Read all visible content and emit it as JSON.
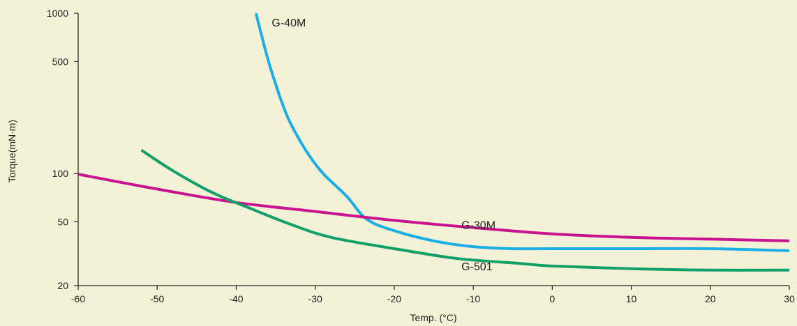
{
  "chart_data": {
    "type": "line",
    "title": "",
    "xlabel": "Temp. (°C)",
    "ylabel": "Torque(mN·m)",
    "xlim": [
      -60,
      30
    ],
    "ylim": [
      20,
      1000
    ],
    "yscale": "log",
    "grid": false,
    "legend": "none",
    "background": "#f3f1d6",
    "x_ticks": [
      -60,
      -50,
      -40,
      -30,
      -20,
      -10,
      0,
      10,
      20,
      30
    ],
    "x_tick_labels": [
      "-60",
      "-50",
      "-40",
      "-30",
      "-20",
      "-10",
      "0",
      "10",
      "20",
      "30"
    ],
    "y_ticks": [
      20,
      50,
      100,
      500,
      1000
    ],
    "y_tick_labels": [
      "20",
      "50",
      "100",
      "500",
      "1000"
    ],
    "series": [
      {
        "name": "G-40M",
        "color": "#1aaee5",
        "points": [
          [
            -37.5,
            1000
          ],
          [
            -37,
            800
          ],
          [
            -36,
            520
          ],
          [
            -35,
            360
          ],
          [
            -34,
            260
          ],
          [
            -33,
            200
          ],
          [
            -31,
            135
          ],
          [
            -29,
            100
          ],
          [
            -26,
            72
          ],
          [
            -23.5,
            52
          ],
          [
            -20,
            44
          ],
          [
            -15,
            38
          ],
          [
            -10,
            35
          ],
          [
            -5,
            34
          ],
          [
            0,
            34
          ],
          [
            10,
            34
          ],
          [
            20,
            34
          ],
          [
            30,
            33
          ]
        ]
      },
      {
        "name": "G-30M",
        "color": "#c8158f",
        "points": [
          [
            -60,
            99
          ],
          [
            -50,
            80
          ],
          [
            -40,
            66
          ],
          [
            -30,
            58
          ],
          [
            -20,
            51
          ],
          [
            -10,
            46
          ],
          [
            0,
            42
          ],
          [
            10,
            40
          ],
          [
            20,
            39
          ],
          [
            30,
            38
          ]
        ]
      },
      {
        "name": "G-501",
        "color": "#12a06a",
        "points": [
          [
            -52,
            140
          ],
          [
            -48,
            104
          ],
          [
            -43,
            76
          ],
          [
            -38,
            60
          ],
          [
            -33,
            48
          ],
          [
            -28,
            40
          ],
          [
            -20,
            34
          ],
          [
            -12,
            29.5
          ],
          [
            -4,
            27.5
          ],
          [
            0,
            26.5
          ],
          [
            10,
            25.5
          ],
          [
            20,
            25
          ],
          [
            30,
            25
          ]
        ]
      }
    ],
    "annotations": [
      {
        "text": "G-40M",
        "x": -35.5,
        "y": 880
      },
      {
        "text": "G-30M",
        "x": -11.5,
        "y": 48
      },
      {
        "text": "G-501",
        "x": -11.5,
        "y": 26.5
      }
    ]
  }
}
